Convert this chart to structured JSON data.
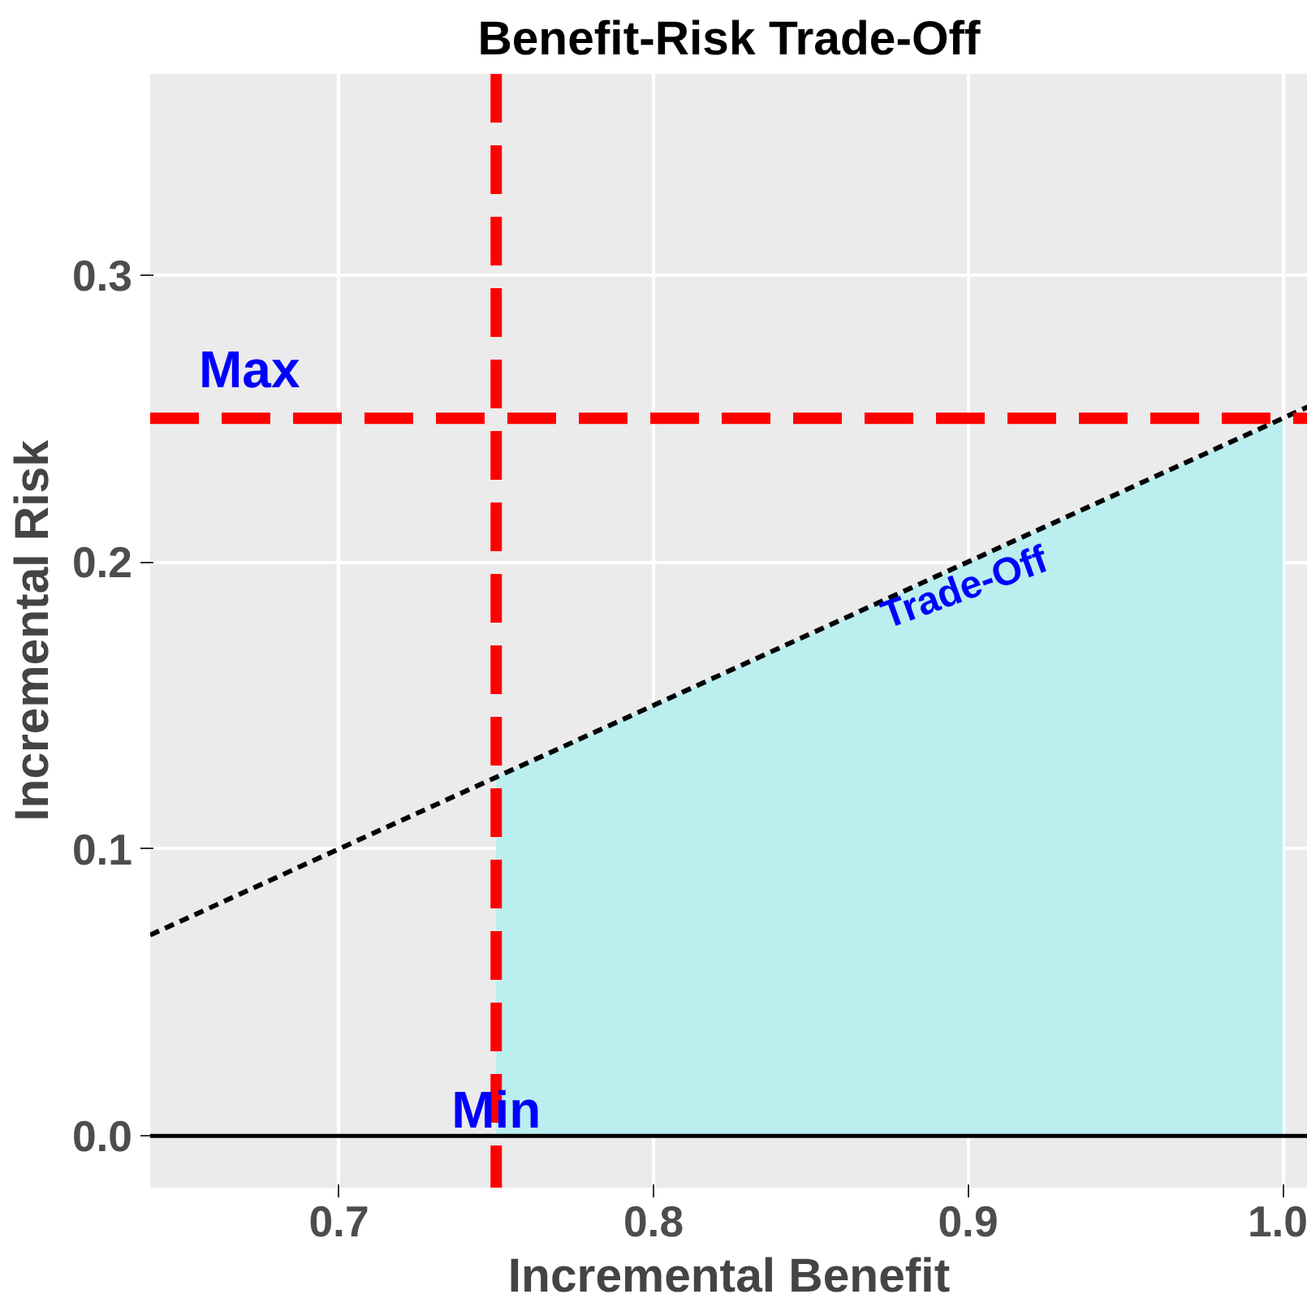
{
  "chart_data": {
    "type": "line",
    "title": "Benefit-Risk Trade-Off",
    "xlabel": "Incremental Benefit",
    "ylabel": "Incremental Risk",
    "xlim": [
      0.64,
      1.008
    ],
    "ylim": [
      -0.018,
      0.37
    ],
    "xticks": [
      0.7,
      0.8,
      0.9,
      {
        "value": 1.0,
        "label": "1.0"
      }
    ],
    "yticks": [
      {
        "value": 0,
        "label": "0.0"
      },
      0.1,
      0.2,
      0.3
    ],
    "grid": true,
    "series": [
      {
        "type": "area",
        "color": "#bbeeee",
        "x": [
          0.75,
          1.0
        ],
        "values": [
          0.125,
          0.25
        ]
      },
      {
        "color": "#000000",
        "line_style": "dashed",
        "x": [
          0.64,
          1.008
        ],
        "values": [
          0.07,
          0.254
        ]
      }
    ],
    "ref_lines": [
      {
        "axis": "y",
        "value": 0,
        "color": "#000000",
        "line_style": "solid"
      },
      {
        "axis": "x",
        "value": 0.75,
        "label": "Min",
        "color": "#ff0000",
        "line_style": "dashed"
      },
      {
        "axis": "y",
        "value": 0.25,
        "label": "Max",
        "color": "#ff0000",
        "line_style": "dashed"
      }
    ],
    "annotations": [
      "Trade-Off"
    ]
  }
}
